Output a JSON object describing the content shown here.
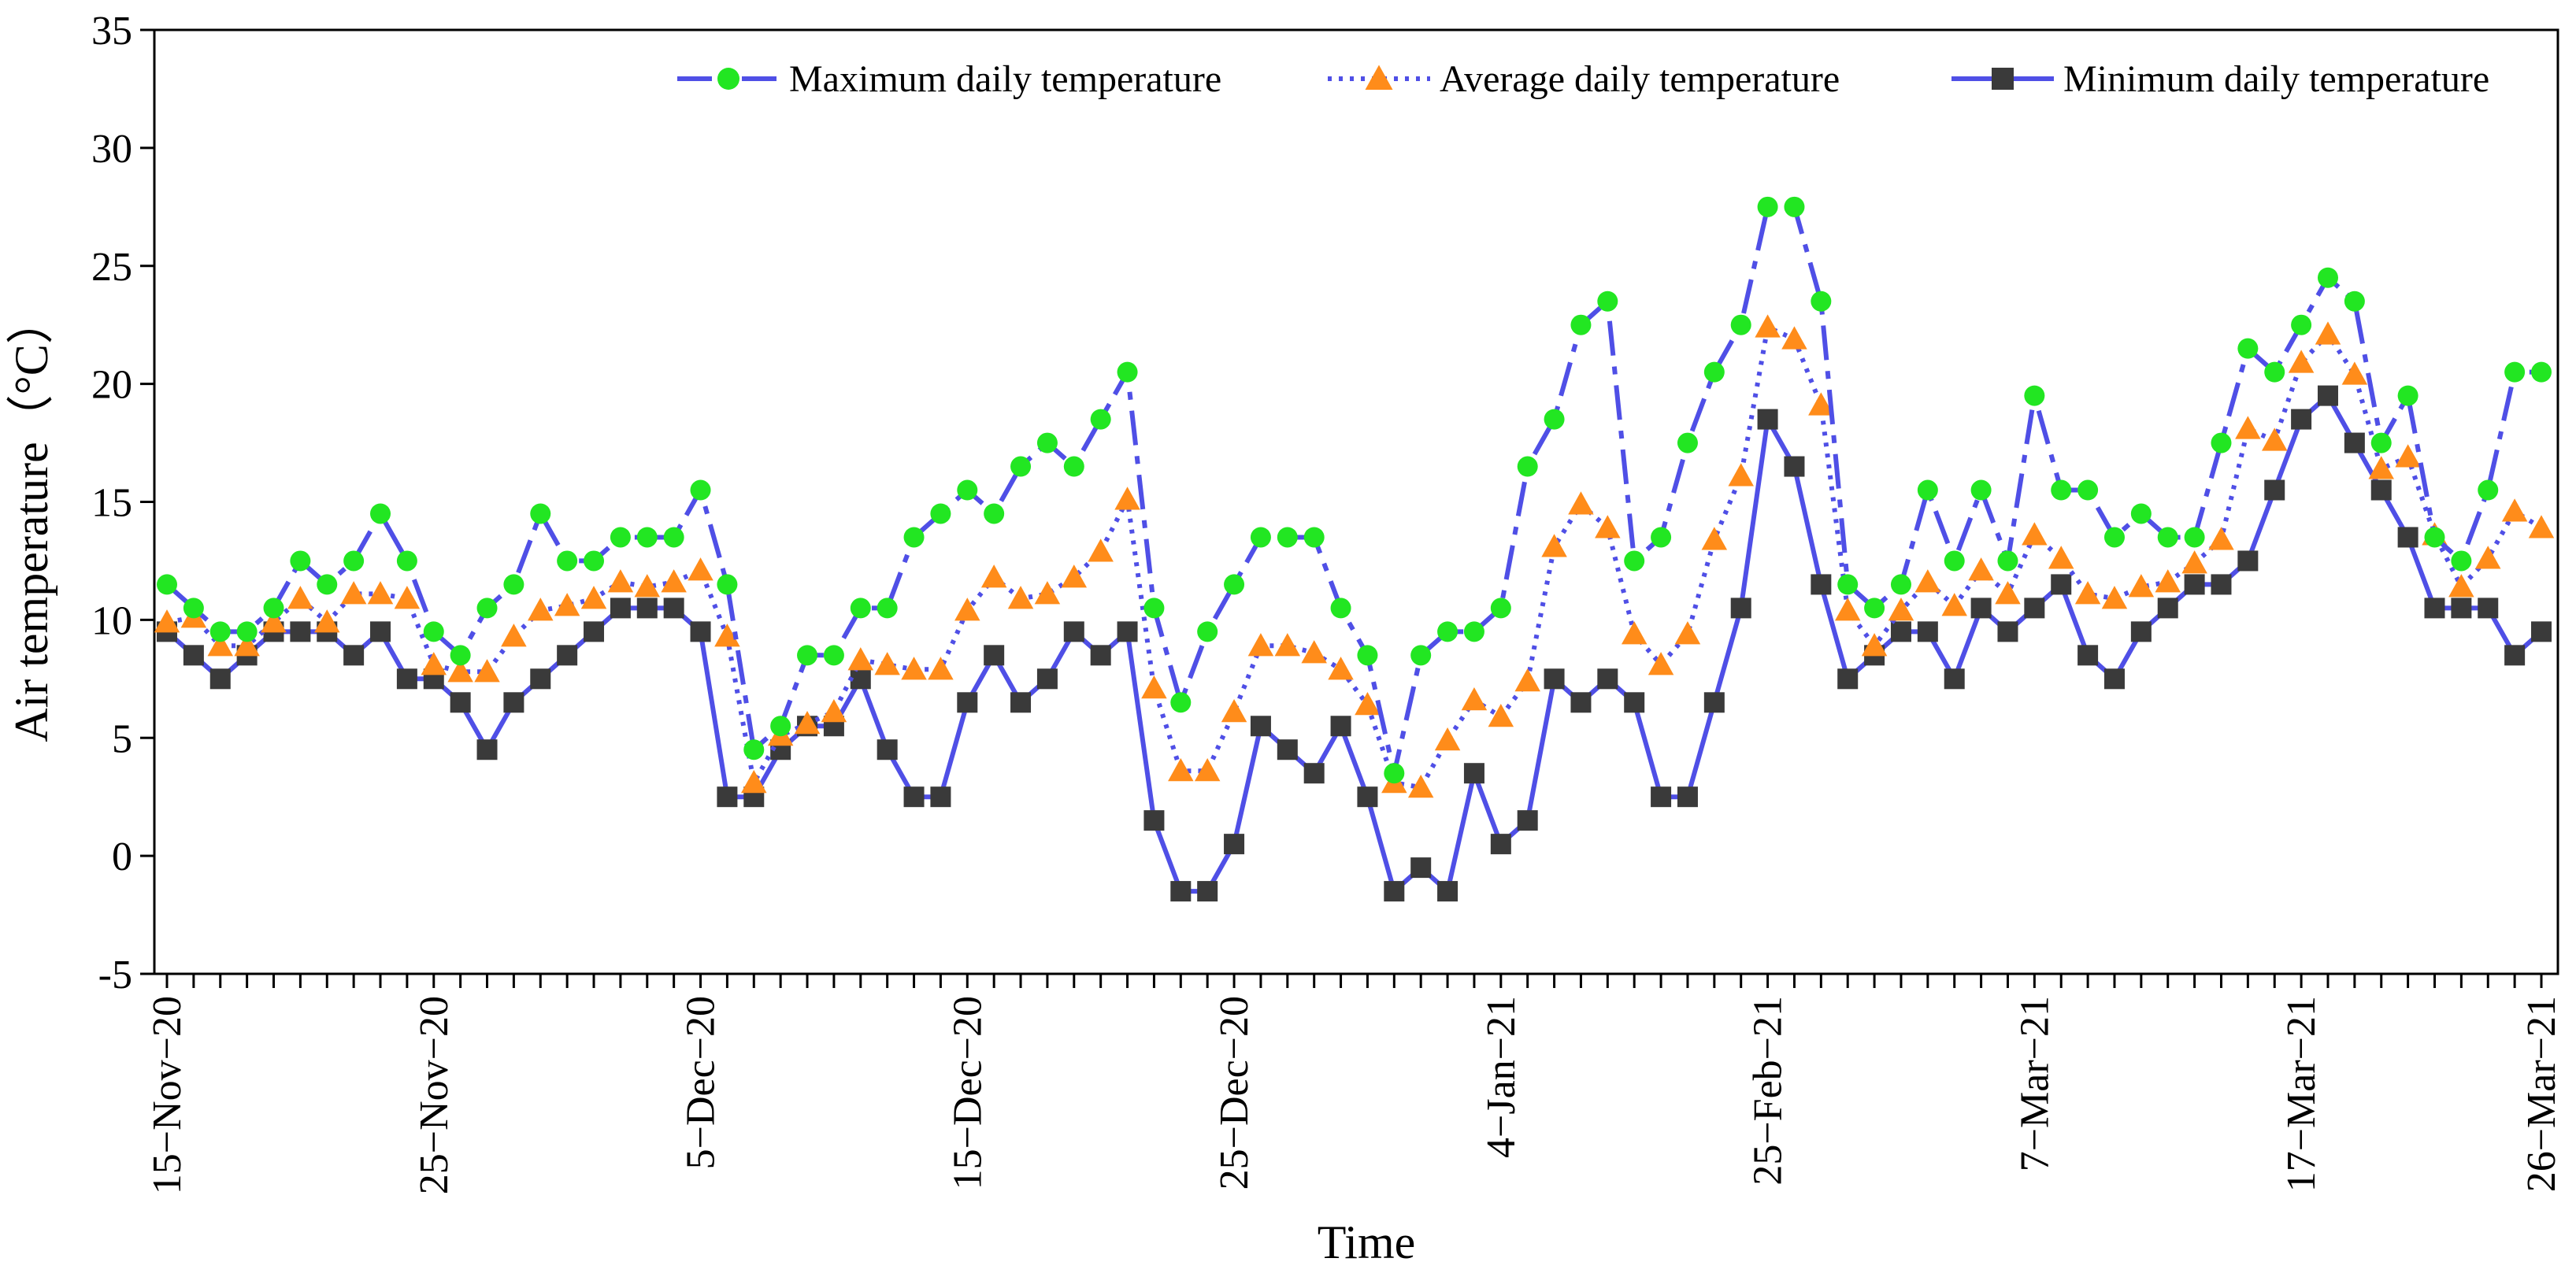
{
  "chart_data": {
    "type": "line",
    "title": "",
    "xlabel": "Time",
    "ylabel": "Air temperature（°C）",
    "ylim": [
      -5,
      35
    ],
    "yticks": [
      -5,
      0,
      5,
      10,
      15,
      20,
      25,
      30,
      35
    ],
    "grid": false,
    "legend_position": "top-right",
    "x_tick_labels": [
      {
        "index": 0,
        "label": "15−Nov−20"
      },
      {
        "index": 10,
        "label": "25−Nov−20"
      },
      {
        "index": 20,
        "label": "5−Dec−20"
      },
      {
        "index": 30,
        "label": "15−Dec−20"
      },
      {
        "index": 40,
        "label": "25−Dec−20"
      },
      {
        "index": 50,
        "label": "4−Jan−21"
      },
      {
        "index": 60,
        "label": "25−Feb−21"
      },
      {
        "index": 70,
        "label": "7−Mar−21"
      },
      {
        "index": 80,
        "label": "17−Mar−21"
      },
      {
        "index": 89,
        "label": "26−Mar−21"
      }
    ],
    "series": [
      {
        "name": "Maximum daily temperature",
        "color": "#4f4fe6",
        "marker": "circle",
        "marker_color": "#22e622",
        "line_style": "dashdot",
        "values": [
          11.5,
          10.5,
          9.5,
          9.5,
          10.5,
          12.5,
          11.5,
          12.5,
          14.5,
          12.5,
          9.5,
          8.5,
          10.5,
          11.5,
          14.5,
          12.5,
          12.5,
          13.5,
          13.5,
          13.5,
          15.5,
          11.5,
          4.5,
          5.5,
          8.5,
          8.5,
          10.5,
          10.5,
          13.5,
          14.5,
          15.5,
          14.5,
          16.5,
          17.5,
          16.5,
          18.5,
          20.5,
          10.5,
          6.5,
          9.5,
          11.5,
          13.5,
          13.5,
          13.5,
          10.5,
          8.5,
          3.5,
          8.5,
          9.5,
          9.5,
          10.5,
          16.5,
          18.5,
          22.5,
          23.5,
          12.5,
          13.5,
          17.5,
          20.5,
          22.5,
          27.5,
          27.5,
          23.5,
          11.5,
          10.5,
          11.5,
          15.5,
          12.5,
          15.5,
          12.5,
          19.5,
          15.5,
          15.5,
          13.5,
          14.5,
          13.5,
          13.5,
          17.5,
          21.5,
          20.5,
          22.5,
          24.5,
          23.5,
          17.5,
          19.5,
          13.5,
          12.5,
          15.5,
          20.5,
          20.5
        ]
      },
      {
        "name": "Average daily temperature",
        "color": "#4f4fe6",
        "marker": "triangle",
        "marker_color": "#ff8c1a",
        "line_style": "dotted",
        "values": [
          9.9,
          10.1,
          8.9,
          8.9,
          9.9,
          10.9,
          9.9,
          11.1,
          11.1,
          10.9,
          8.1,
          7.8,
          7.8,
          9.3,
          10.4,
          10.6,
          10.9,
          11.6,
          11.4,
          11.6,
          12.1,
          9.3,
          3.1,
          5.1,
          5.6,
          6.1,
          8.3,
          8.1,
          7.9,
          7.9,
          10.4,
          11.8,
          10.9,
          11.1,
          11.8,
          12.9,
          15.1,
          7.1,
          3.6,
          3.6,
          6.1,
          8.9,
          8.9,
          8.6,
          7.9,
          6.4,
          3.1,
          2.9,
          4.9,
          6.6,
          5.9,
          7.4,
          13.1,
          14.9,
          13.9,
          9.4,
          8.1,
          9.4,
          13.4,
          16.1,
          22.4,
          21.9,
          19.1,
          10.4,
          8.9,
          10.4,
          11.6,
          10.6,
          12.1,
          11.1,
          13.6,
          12.6,
          11.1,
          10.9,
          11.4,
          11.6,
          12.4,
          13.4,
          18.1,
          17.6,
          20.9,
          22.1,
          20.4,
          16.4,
          16.9,
          13.6,
          11.4,
          12.6,
          14.6,
          13.9
        ]
      },
      {
        "name": "Minimum daily temperature",
        "color": "#4f4fe6",
        "marker": "square",
        "marker_color": "#3a3a3a",
        "line_style": "solid",
        "values": [
          9.5,
          8.5,
          7.5,
          8.5,
          9.5,
          9.5,
          9.5,
          8.5,
          9.5,
          7.5,
          7.5,
          6.5,
          4.5,
          6.5,
          7.5,
          8.5,
          9.5,
          10.5,
          10.5,
          10.5,
          9.5,
          2.5,
          2.5,
          4.5,
          5.5,
          5.5,
          7.5,
          4.5,
          2.5,
          2.5,
          6.5,
          8.5,
          6.5,
          7.5,
          9.5,
          8.5,
          9.5,
          1.5,
          -1.5,
          -1.5,
          0.5,
          5.5,
          4.5,
          3.5,
          5.5,
          2.5,
          -1.5,
          -0.5,
          -1.5,
          3.5,
          0.5,
          1.5,
          7.5,
          6.5,
          7.5,
          6.5,
          2.5,
          2.5,
          6.5,
          10.5,
          18.5,
          16.5,
          11.5,
          7.5,
          8.5,
          9.5,
          9.5,
          7.5,
          10.5,
          9.5,
          10.5,
          11.5,
          8.5,
          7.5,
          9.5,
          10.5,
          11.5,
          11.5,
          12.5,
          15.5,
          18.5,
          19.5,
          17.5,
          15.5,
          13.5,
          10.5,
          10.5,
          10.5,
          8.5,
          9.5
        ]
      }
    ]
  }
}
